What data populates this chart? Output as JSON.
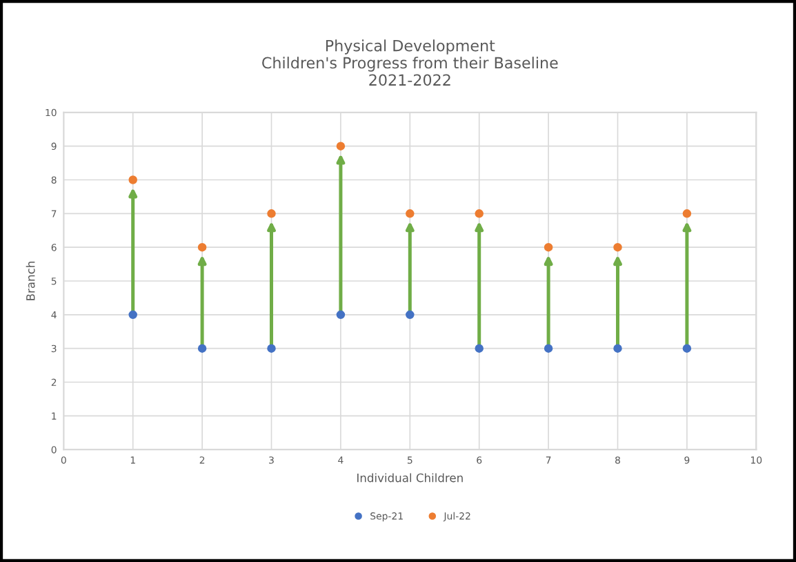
{
  "chart_data": {
    "type": "scatter",
    "title": "Physical Development\nChildren's Progress from their Baseline\n2021-2022",
    "xlabel": "Individual Children",
    "ylabel": "Branch",
    "x": [
      1,
      2,
      3,
      4,
      5,
      6,
      7,
      8,
      9
    ],
    "series": [
      {
        "name": "Sep-21",
        "color": "#4472c4",
        "values": [
          4,
          3,
          3,
          4,
          4,
          3,
          3,
          3,
          3
        ]
      },
      {
        "name": "Jul-22",
        "color": "#ed7d31",
        "values": [
          8,
          6,
          7,
          9,
          7,
          7,
          6,
          6,
          7
        ]
      }
    ],
    "xlim": [
      0,
      10
    ],
    "xticks": [
      0,
      1,
      2,
      3,
      4,
      5,
      6,
      7,
      8,
      9,
      10
    ],
    "ylim": [
      0,
      10
    ],
    "yticks": [
      0,
      1,
      2,
      3,
      4,
      5,
      6,
      7,
      8,
      9,
      10
    ],
    "grid": true,
    "legend": "bottom",
    "marker": "circle"
  }
}
